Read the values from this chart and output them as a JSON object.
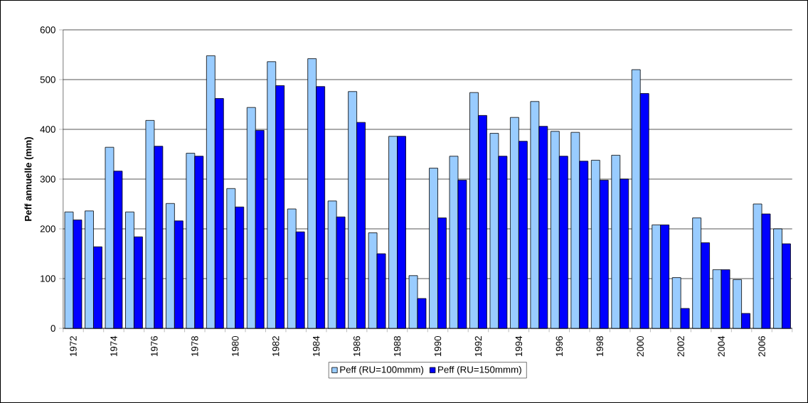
{
  "chart_data": {
    "type": "bar",
    "ylabel": "Peff annuelle (mm)",
    "categories": [
      "1972",
      null,
      "1974",
      null,
      "1976",
      null,
      "1978",
      null,
      "1980",
      null,
      "1982",
      null,
      "1984",
      null,
      "1986",
      null,
      "1988",
      null,
      "1990",
      null,
      "1992",
      null,
      "1994",
      null,
      "1996",
      null,
      "1998",
      null,
      "2000",
      null,
      "2002",
      null,
      "2004",
      null,
      "2006",
      null
    ],
    "series": [
      {
        "name": "Peff (RU=100mmm)",
        "color": "#99ccff",
        "values": [
          234,
          236,
          364,
          234,
          418,
          251,
          352,
          548,
          281,
          444,
          536,
          240,
          542,
          256,
          476,
          192,
          386,
          106,
          322,
          346,
          474,
          392,
          424,
          456,
          396,
          394,
          338,
          348,
          520,
          208,
          102,
          222,
          118,
          98,
          250,
          200
        ]
      },
      {
        "name": "Peff (RU=150mmm)",
        "color": "#0000ff",
        "values": [
          218,
          164,
          316,
          184,
          366,
          216,
          346,
          462,
          244,
          398,
          488,
          194,
          486,
          224,
          414,
          150,
          386,
          60,
          222,
          298,
          428,
          346,
          376,
          406,
          346,
          336,
          298,
          300,
          472,
          208,
          40,
          172,
          118,
          30,
          230,
          170
        ]
      }
    ],
    "ylim": [
      0,
      600
    ],
    "yticks": [
      0,
      100,
      200,
      300,
      400,
      500,
      600
    ],
    "grid": "y",
    "legend": "bottom"
  }
}
